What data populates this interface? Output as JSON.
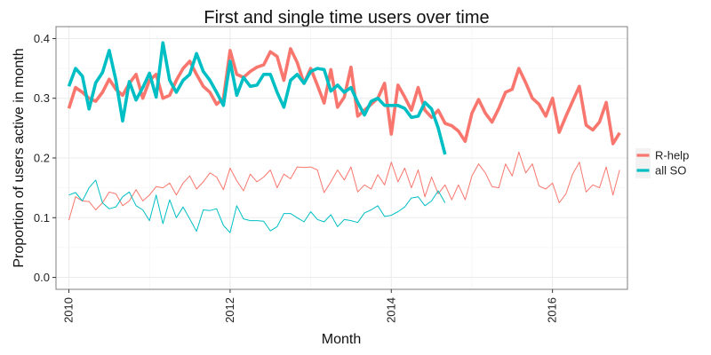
{
  "chart_data": {
    "type": "line",
    "title": "First and single time users over time",
    "xlabel": "Month",
    "ylabel": "Proportion of users active in month",
    "xlim": [
      2009.84,
      2016.93
    ],
    "ylim": [
      -0.02,
      0.42
    ],
    "x_ticks": [
      {
        "value": 2010,
        "label": "2010"
      },
      {
        "value": 2012,
        "label": "2012"
      },
      {
        "value": 2014,
        "label": "2014"
      },
      {
        "value": 2016,
        "label": "2016"
      }
    ],
    "y_ticks": [
      {
        "value": 0.0,
        "label": "0.0"
      },
      {
        "value": 0.1,
        "label": "0.1"
      },
      {
        "value": 0.2,
        "label": "0.2"
      },
      {
        "value": 0.3,
        "label": "0.3"
      },
      {
        "value": 0.4,
        "label": "0.4"
      }
    ],
    "grid": true,
    "legend": {
      "placement": "right",
      "entries": [
        {
          "name": "R-help",
          "color": "#F8766D"
        },
        {
          "name": "all SO",
          "color": "#00BFC4"
        }
      ]
    },
    "series": [
      {
        "name": "R-help",
        "metric": "first-time",
        "color": "#F8766D",
        "line": "thick",
        "points": [
          [
            2010.0,
            0.283
          ],
          [
            2010.083,
            0.318
          ],
          [
            2010.167,
            0.31
          ],
          [
            2010.25,
            0.3
          ],
          [
            2010.333,
            0.295
          ],
          [
            2010.417,
            0.31
          ],
          [
            2010.5,
            0.332
          ],
          [
            2010.583,
            0.315
          ],
          [
            2010.667,
            0.305
          ],
          [
            2010.75,
            0.325
          ],
          [
            2010.833,
            0.34
          ],
          [
            2010.917,
            0.3
          ],
          [
            2011.0,
            0.33
          ],
          [
            2011.083,
            0.34
          ],
          [
            2011.167,
            0.3
          ],
          [
            2011.25,
            0.305
          ],
          [
            2011.333,
            0.33
          ],
          [
            2011.417,
            0.35
          ],
          [
            2011.5,
            0.362
          ],
          [
            2011.583,
            0.34
          ],
          [
            2011.667,
            0.32
          ],
          [
            2011.75,
            0.31
          ],
          [
            2011.833,
            0.29
          ],
          [
            2011.917,
            0.3
          ],
          [
            2012.0,
            0.38
          ],
          [
            2012.083,
            0.34
          ],
          [
            2012.167,
            0.335
          ],
          [
            2012.25,
            0.345
          ],
          [
            2012.333,
            0.352
          ],
          [
            2012.417,
            0.356
          ],
          [
            2012.5,
            0.378
          ],
          [
            2012.583,
            0.37
          ],
          [
            2012.667,
            0.33
          ],
          [
            2012.75,
            0.383
          ],
          [
            2012.833,
            0.36
          ],
          [
            2012.917,
            0.325
          ],
          [
            2013.0,
            0.35
          ],
          [
            2013.083,
            0.322
          ],
          [
            2013.167,
            0.292
          ],
          [
            2013.25,
            0.348
          ],
          [
            2013.333,
            0.285
          ],
          [
            2013.417,
            0.302
          ],
          [
            2013.5,
            0.352
          ],
          [
            2013.583,
            0.27
          ],
          [
            2013.667,
            0.28
          ],
          [
            2013.75,
            0.29
          ],
          [
            2013.833,
            0.3
          ],
          [
            2013.917,
            0.325
          ],
          [
            2014.0,
            0.24
          ],
          [
            2014.083,
            0.322
          ],
          [
            2014.167,
            0.302
          ],
          [
            2014.25,
            0.28
          ],
          [
            2014.333,
            0.318
          ],
          [
            2014.417,
            0.28
          ],
          [
            2014.5,
            0.268
          ],
          [
            2014.583,
            0.28
          ],
          [
            2014.667,
            0.258
          ],
          [
            2014.75,
            0.254
          ],
          [
            2014.833,
            0.245
          ],
          [
            2014.917,
            0.228
          ],
          [
            2015.0,
            0.275
          ],
          [
            2015.083,
            0.298
          ],
          [
            2015.167,
            0.275
          ],
          [
            2015.25,
            0.26
          ],
          [
            2015.333,
            0.283
          ],
          [
            2015.417,
            0.31
          ],
          [
            2015.5,
            0.315
          ],
          [
            2015.583,
            0.35
          ],
          [
            2015.667,
            0.326
          ],
          [
            2015.75,
            0.3
          ],
          [
            2015.833,
            0.29
          ],
          [
            2015.917,
            0.27
          ],
          [
            2016.0,
            0.3
          ],
          [
            2016.083,
            0.243
          ],
          [
            2016.167,
            0.27
          ],
          [
            2016.25,
            0.295
          ],
          [
            2016.333,
            0.32
          ],
          [
            2016.417,
            0.255
          ],
          [
            2016.5,
            0.247
          ],
          [
            2016.583,
            0.26
          ],
          [
            2016.667,
            0.293
          ],
          [
            2016.75,
            0.224
          ],
          [
            2016.833,
            0.242
          ]
        ]
      },
      {
        "name": "all SO",
        "metric": "first-time",
        "color": "#00BFC4",
        "line": "thick",
        "points": [
          [
            2010.0,
            0.32
          ],
          [
            2010.083,
            0.35
          ],
          [
            2010.167,
            0.337
          ],
          [
            2010.25,
            0.282
          ],
          [
            2010.333,
            0.326
          ],
          [
            2010.417,
            0.343
          ],
          [
            2010.5,
            0.38
          ],
          [
            2010.583,
            0.33
          ],
          [
            2010.667,
            0.262
          ],
          [
            2010.75,
            0.328
          ],
          [
            2010.833,
            0.297
          ],
          [
            2010.917,
            0.318
          ],
          [
            2011.0,
            0.342
          ],
          [
            2011.083,
            0.302
          ],
          [
            2011.167,
            0.393
          ],
          [
            2011.25,
            0.33
          ],
          [
            2011.333,
            0.31
          ],
          [
            2011.417,
            0.33
          ],
          [
            2011.5,
            0.34
          ],
          [
            2011.583,
            0.375
          ],
          [
            2011.667,
            0.345
          ],
          [
            2011.75,
            0.33
          ],
          [
            2011.833,
            0.31
          ],
          [
            2011.917,
            0.288
          ],
          [
            2012.0,
            0.362
          ],
          [
            2012.083,
            0.305
          ],
          [
            2012.167,
            0.335
          ],
          [
            2012.25,
            0.32
          ],
          [
            2012.333,
            0.322
          ],
          [
            2012.417,
            0.34
          ],
          [
            2012.5,
            0.34
          ],
          [
            2012.583,
            0.31
          ],
          [
            2012.667,
            0.285
          ],
          [
            2012.75,
            0.33
          ],
          [
            2012.833,
            0.34
          ],
          [
            2012.917,
            0.325
          ],
          [
            2013.0,
            0.345
          ],
          [
            2013.083,
            0.35
          ],
          [
            2013.167,
            0.348
          ],
          [
            2013.25,
            0.312
          ],
          [
            2013.333,
            0.322
          ],
          [
            2013.417,
            0.31
          ],
          [
            2013.5,
            0.318
          ],
          [
            2013.583,
            0.293
          ],
          [
            2013.667,
            0.272
          ],
          [
            2013.75,
            0.295
          ],
          [
            2013.833,
            0.3
          ],
          [
            2013.917,
            0.288
          ],
          [
            2014.0,
            0.288
          ],
          [
            2014.083,
            0.288
          ],
          [
            2014.167,
            0.283
          ],
          [
            2014.25,
            0.268
          ],
          [
            2014.333,
            0.27
          ],
          [
            2014.417,
            0.293
          ],
          [
            2014.5,
            0.282
          ],
          [
            2014.583,
            0.25
          ],
          [
            2014.667,
            0.206
          ]
        ]
      },
      {
        "name": "R-help",
        "metric": "single-time",
        "color": "#F8766D",
        "line": "thin",
        "points": [
          [
            2010.0,
            0.096
          ],
          [
            2010.083,
            0.135
          ],
          [
            2010.167,
            0.128
          ],
          [
            2010.25,
            0.127
          ],
          [
            2010.333,
            0.113
          ],
          [
            2010.417,
            0.125
          ],
          [
            2010.5,
            0.143
          ],
          [
            2010.583,
            0.14
          ],
          [
            2010.667,
            0.12
          ],
          [
            2010.75,
            0.128
          ],
          [
            2010.833,
            0.147
          ],
          [
            2010.917,
            0.128
          ],
          [
            2011.0,
            0.138
          ],
          [
            2011.083,
            0.152
          ],
          [
            2011.167,
            0.15
          ],
          [
            2011.25,
            0.158
          ],
          [
            2011.333,
            0.138
          ],
          [
            2011.417,
            0.158
          ],
          [
            2011.5,
            0.17
          ],
          [
            2011.583,
            0.148
          ],
          [
            2011.667,
            0.16
          ],
          [
            2011.75,
            0.175
          ],
          [
            2011.833,
            0.168
          ],
          [
            2011.917,
            0.147
          ],
          [
            2012.0,
            0.183
          ],
          [
            2012.083,
            0.162
          ],
          [
            2012.167,
            0.145
          ],
          [
            2012.25,
            0.173
          ],
          [
            2012.333,
            0.16
          ],
          [
            2012.417,
            0.168
          ],
          [
            2012.5,
            0.18
          ],
          [
            2012.583,
            0.15
          ],
          [
            2012.667,
            0.173
          ],
          [
            2012.75,
            0.165
          ],
          [
            2012.833,
            0.185
          ],
          [
            2012.917,
            0.184
          ],
          [
            2013.0,
            0.185
          ],
          [
            2013.083,
            0.18
          ],
          [
            2013.167,
            0.142
          ],
          [
            2013.25,
            0.16
          ],
          [
            2013.333,
            0.18
          ],
          [
            2013.417,
            0.163
          ],
          [
            2013.5,
            0.185
          ],
          [
            2013.583,
            0.143
          ],
          [
            2013.667,
            0.155
          ],
          [
            2013.75,
            0.148
          ],
          [
            2013.833,
            0.172
          ],
          [
            2013.917,
            0.155
          ],
          [
            2014.0,
            0.193
          ],
          [
            2014.083,
            0.16
          ],
          [
            2014.167,
            0.183
          ],
          [
            2014.25,
            0.15
          ],
          [
            2014.333,
            0.18
          ],
          [
            2014.417,
            0.135
          ],
          [
            2014.5,
            0.168
          ],
          [
            2014.583,
            0.14
          ],
          [
            2014.667,
            0.155
          ],
          [
            2014.75,
            0.13
          ],
          [
            2014.833,
            0.155
          ],
          [
            2014.917,
            0.13
          ],
          [
            2015.0,
            0.17
          ],
          [
            2015.083,
            0.19
          ],
          [
            2015.167,
            0.175
          ],
          [
            2015.25,
            0.152
          ],
          [
            2015.333,
            0.15
          ],
          [
            2015.417,
            0.19
          ],
          [
            2015.5,
            0.17
          ],
          [
            2015.583,
            0.21
          ],
          [
            2015.667,
            0.175
          ],
          [
            2015.75,
            0.19
          ],
          [
            2015.833,
            0.153
          ],
          [
            2015.917,
            0.148
          ],
          [
            2016.0,
            0.158
          ],
          [
            2016.083,
            0.125
          ],
          [
            2016.167,
            0.14
          ],
          [
            2016.25,
            0.173
          ],
          [
            2016.333,
            0.193
          ],
          [
            2016.417,
            0.143
          ],
          [
            2016.5,
            0.155
          ],
          [
            2016.583,
            0.15
          ],
          [
            2016.667,
            0.185
          ],
          [
            2016.75,
            0.138
          ],
          [
            2016.833,
            0.18
          ]
        ]
      },
      {
        "name": "all SO",
        "metric": "single-time",
        "color": "#00BFC4",
        "line": "thin",
        "points": [
          [
            2010.0,
            0.138
          ],
          [
            2010.083,
            0.142
          ],
          [
            2010.167,
            0.128
          ],
          [
            2010.25,
            0.15
          ],
          [
            2010.333,
            0.163
          ],
          [
            2010.417,
            0.125
          ],
          [
            2010.5,
            0.115
          ],
          [
            2010.583,
            0.118
          ],
          [
            2010.667,
            0.135
          ],
          [
            2010.75,
            0.143
          ],
          [
            2010.833,
            0.12
          ],
          [
            2010.917,
            0.113
          ],
          [
            2011.0,
            0.095
          ],
          [
            2011.083,
            0.138
          ],
          [
            2011.167,
            0.09
          ],
          [
            2011.25,
            0.13
          ],
          [
            2011.333,
            0.1
          ],
          [
            2011.417,
            0.118
          ],
          [
            2011.5,
            0.098
          ],
          [
            2011.583,
            0.077
          ],
          [
            2011.667,
            0.113
          ],
          [
            2011.75,
            0.112
          ],
          [
            2011.833,
            0.115
          ],
          [
            2011.917,
            0.087
          ],
          [
            2012.0,
            0.075
          ],
          [
            2012.083,
            0.12
          ],
          [
            2012.167,
            0.098
          ],
          [
            2012.25,
            0.095
          ],
          [
            2012.333,
            0.095
          ],
          [
            2012.417,
            0.094
          ],
          [
            2012.5,
            0.078
          ],
          [
            2012.583,
            0.085
          ],
          [
            2012.667,
            0.107
          ],
          [
            2012.75,
            0.107
          ],
          [
            2012.833,
            0.1
          ],
          [
            2012.917,
            0.093
          ],
          [
            2013.0,
            0.11
          ],
          [
            2013.083,
            0.097
          ],
          [
            2013.167,
            0.093
          ],
          [
            2013.25,
            0.105
          ],
          [
            2013.333,
            0.085
          ],
          [
            2013.417,
            0.097
          ],
          [
            2013.5,
            0.095
          ],
          [
            2013.583,
            0.092
          ],
          [
            2013.667,
            0.108
          ],
          [
            2013.75,
            0.113
          ],
          [
            2013.833,
            0.12
          ],
          [
            2013.917,
            0.102
          ],
          [
            2014.0,
            0.104
          ],
          [
            2014.083,
            0.11
          ],
          [
            2014.167,
            0.118
          ],
          [
            2014.25,
            0.133
          ],
          [
            2014.333,
            0.135
          ],
          [
            2014.417,
            0.12
          ],
          [
            2014.5,
            0.128
          ],
          [
            2014.583,
            0.145
          ],
          [
            2014.667,
            0.125
          ]
        ]
      }
    ]
  }
}
